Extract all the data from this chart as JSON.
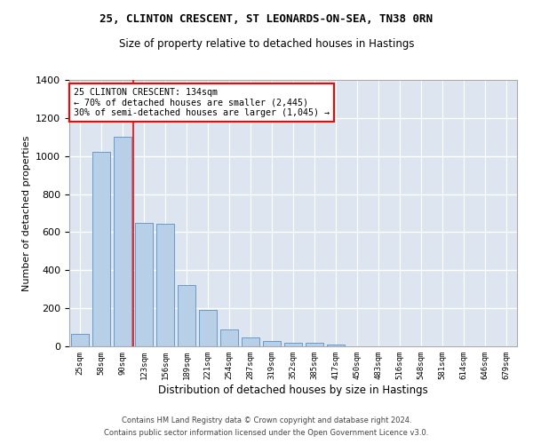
{
  "title1": "25, CLINTON CRESCENT, ST LEONARDS-ON-SEA, TN38 0RN",
  "title2": "Size of property relative to detached houses in Hastings",
  "xlabel": "Distribution of detached houses by size in Hastings",
  "ylabel": "Number of detached properties",
  "bar_color": "#b8cfe8",
  "bar_edge_color": "#6699cc",
  "background_color": "#dde6f0",
  "grid_color": "#ffffff",
  "categories": [
    "25sqm",
    "58sqm",
    "90sqm",
    "123sqm",
    "156sqm",
    "189sqm",
    "221sqm",
    "254sqm",
    "287sqm",
    "319sqm",
    "352sqm",
    "385sqm",
    "417sqm",
    "450sqm",
    "483sqm",
    "516sqm",
    "548sqm",
    "581sqm",
    "614sqm",
    "646sqm",
    "679sqm"
  ],
  "values": [
    65,
    1020,
    1100,
    650,
    645,
    320,
    190,
    90,
    48,
    30,
    20,
    17,
    10,
    0,
    0,
    0,
    0,
    0,
    0,
    0,
    0
  ],
  "annotation_title": "25 CLINTON CRESCENT: 134sqm",
  "annotation_line1": "← 70% of detached houses are smaller (2,445)",
  "annotation_line2": "30% of semi-detached houses are larger (1,045) →",
  "vline_pos": 2.5,
  "ylim": [
    0,
    1400
  ],
  "yticks": [
    0,
    200,
    400,
    600,
    800,
    1000,
    1200,
    1400
  ],
  "footer1": "Contains HM Land Registry data © Crown copyright and database right 2024.",
  "footer2": "Contains public sector information licensed under the Open Government Licence v3.0."
}
